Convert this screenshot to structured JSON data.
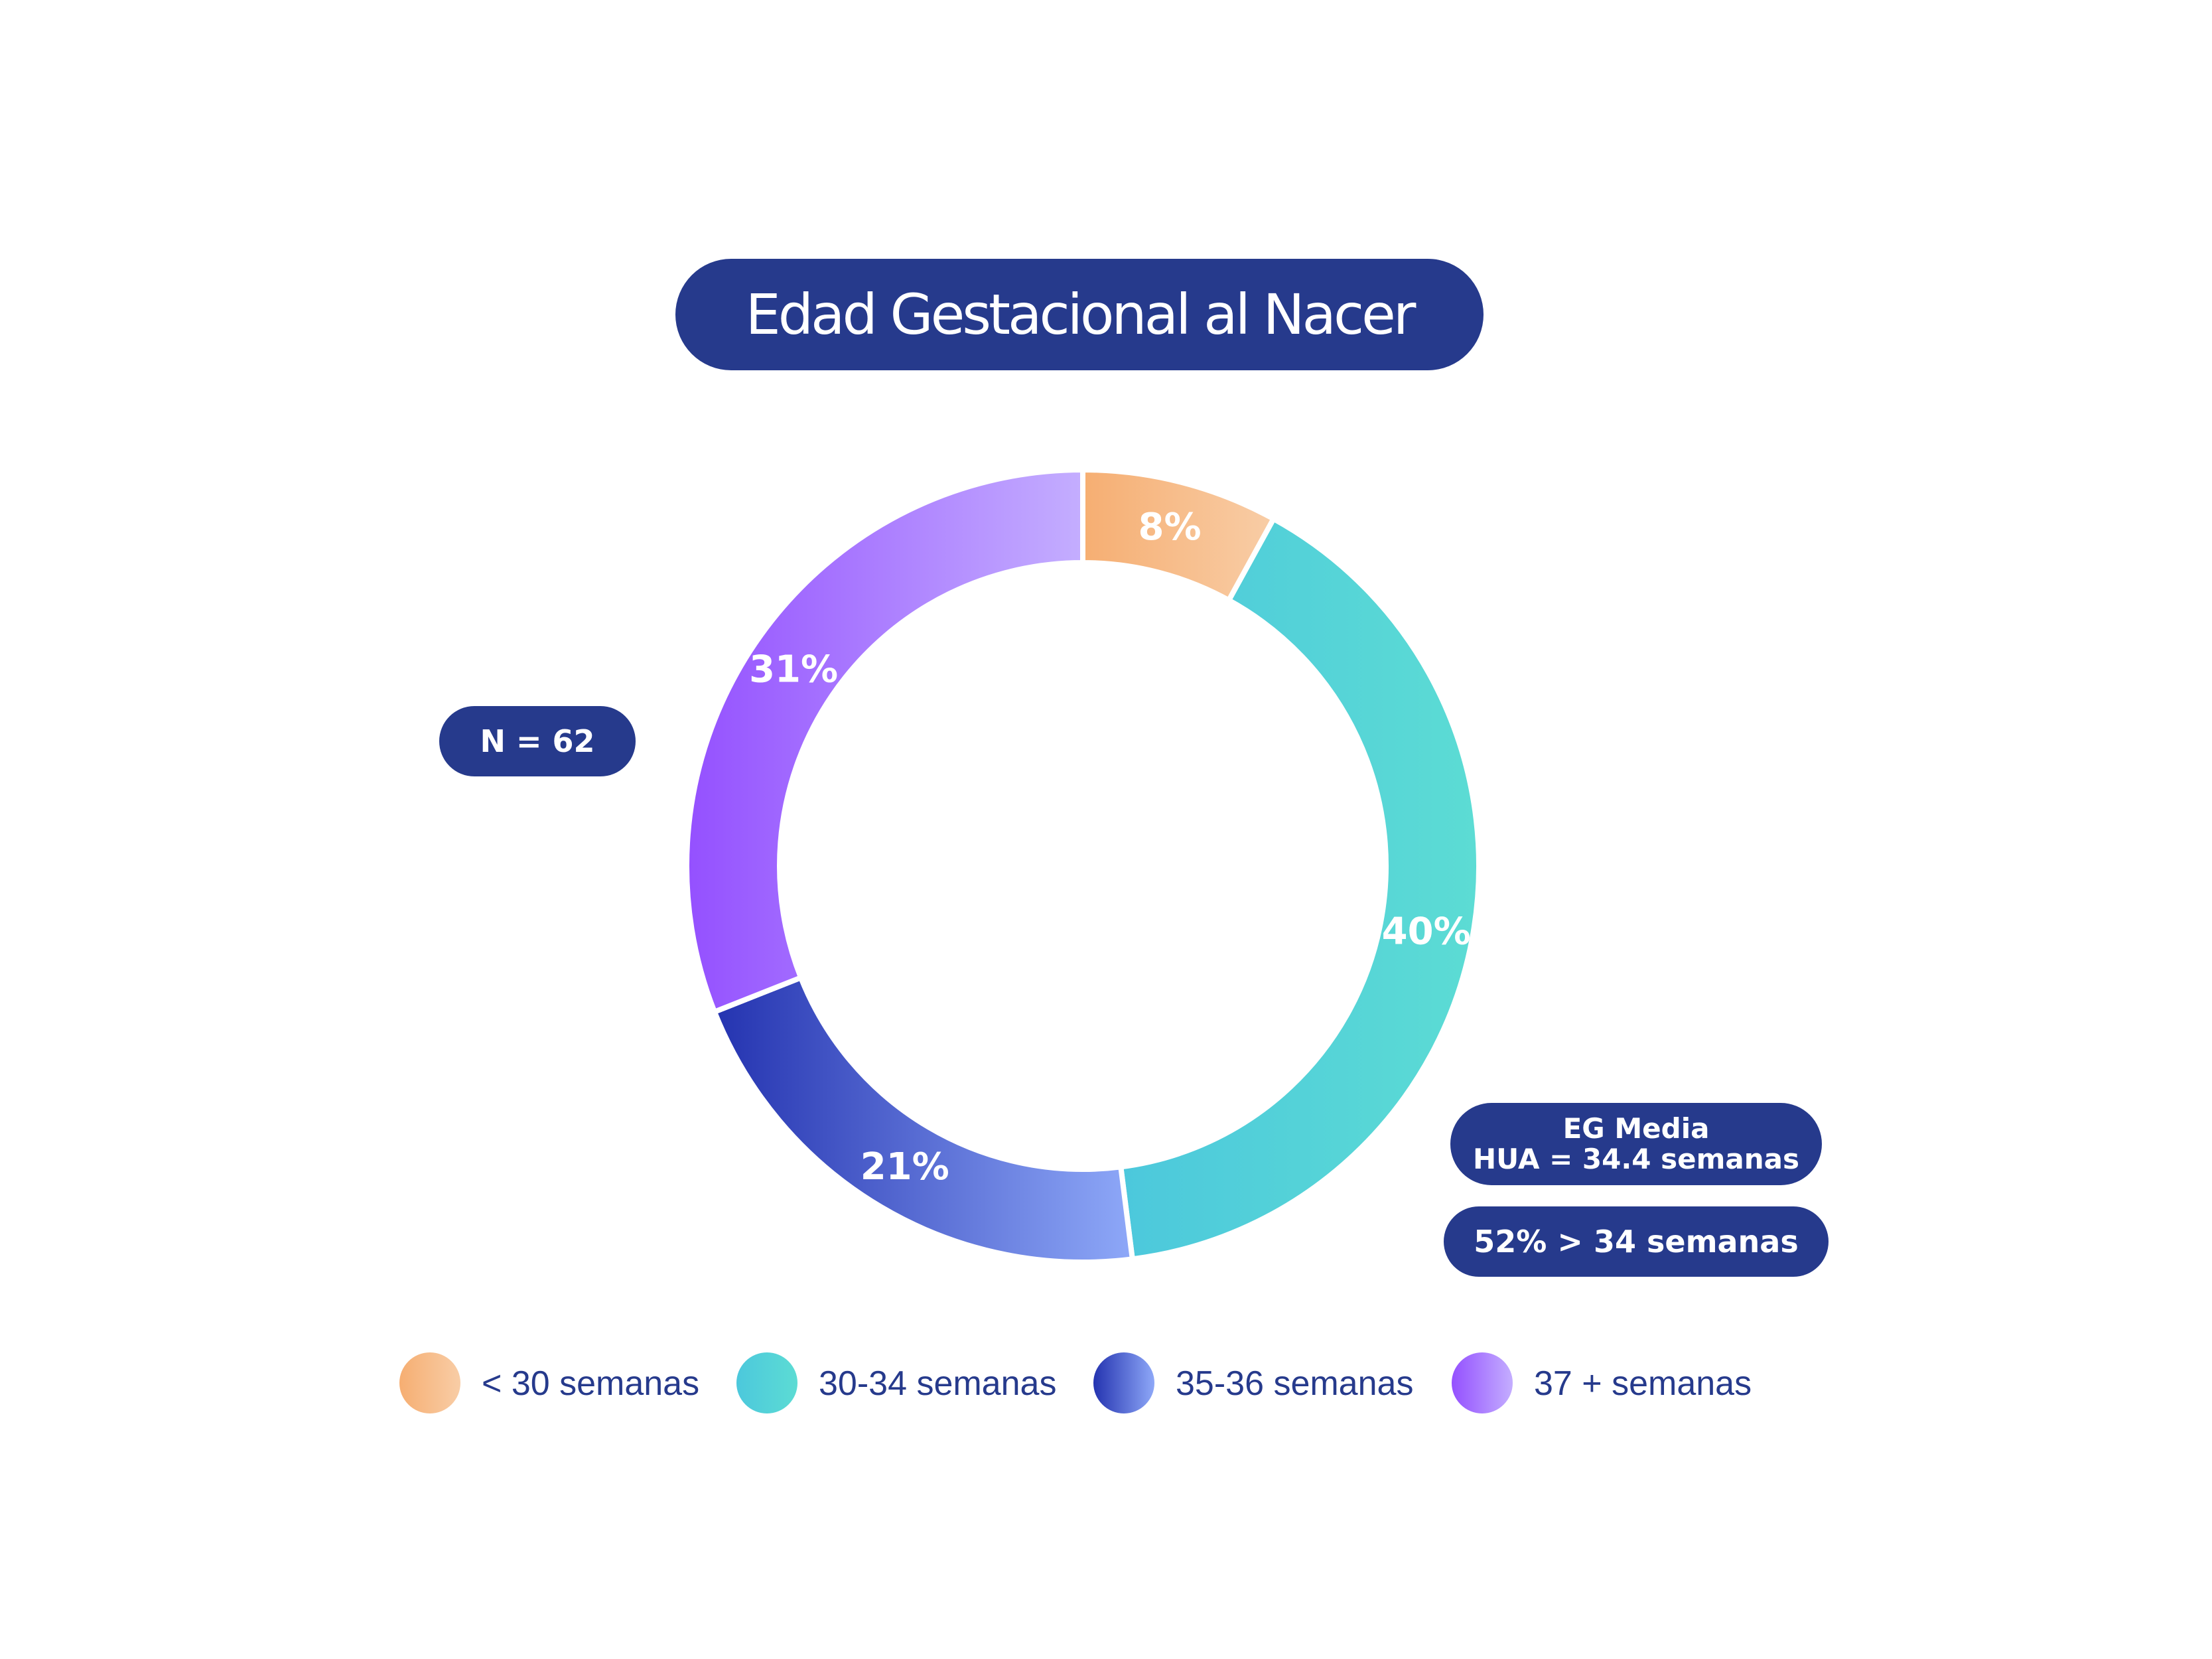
{
  "chart_data": {
    "type": "pie",
    "donut": true,
    "title": "Edad Gestacional al Nacer",
    "categories": [
      "< 30 semanas",
      "30-34 semanas",
      "35-36 semanas",
      "37 + semanas"
    ],
    "values": [
      8,
      40,
      21,
      31
    ],
    "labels": [
      "8%",
      "40%",
      "21%",
      "31%"
    ],
    "colors": [
      [
        "#f6ae72",
        "#f8cda6"
      ],
      [
        "#4cc8dc",
        "#5cdcd4"
      ],
      [
        "#2433b0",
        "#8ea8f8"
      ],
      [
        "#9450ff",
        "#c4aeff"
      ]
    ],
    "legend_position": "bottom",
    "annotations": {
      "n": "N = 62",
      "eg_line1": "EG Media",
      "eg_line2": "HUA = 34.4 semanas",
      "pct": "52% > 34 semanas"
    }
  }
}
